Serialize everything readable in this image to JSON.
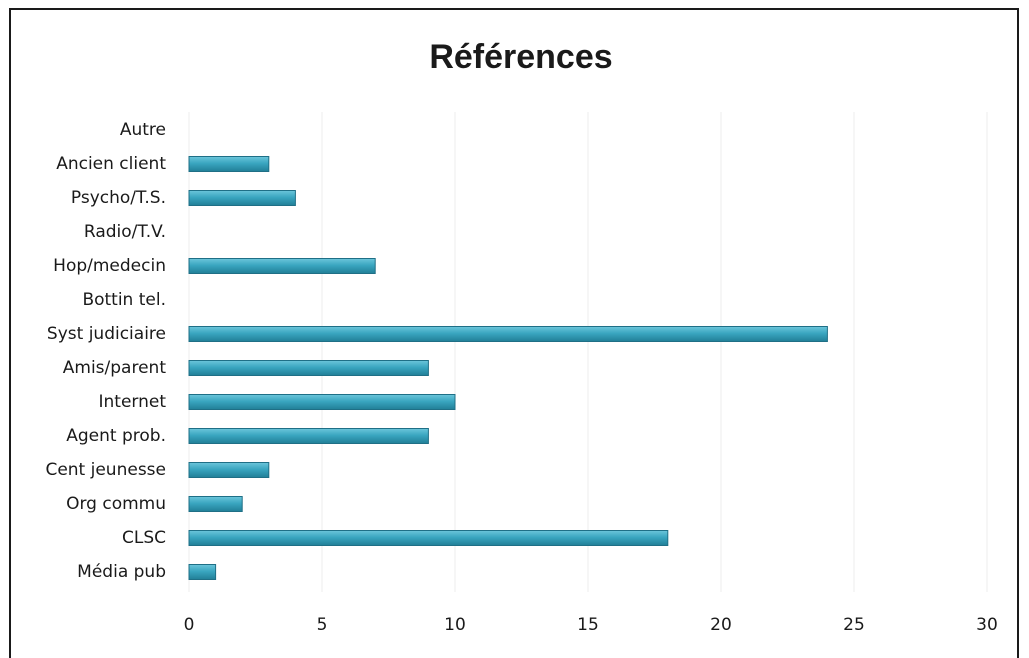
{
  "chart_data": {
    "type": "bar",
    "orientation": "horizontal",
    "title": "Références",
    "categories": [
      "Autre",
      "Ancien client",
      "Psycho/T.S.",
      "Radio/T.V.",
      "Hop/medecin",
      "Bottin tel.",
      "Syst judiciaire",
      "Amis/parent",
      "Internet",
      "Agent prob.",
      "Cent jeunesse",
      "Org commu",
      "CLSC",
      "Média pub"
    ],
    "values": [
      0,
      3,
      4,
      0,
      7,
      0,
      24,
      9,
      10,
      9,
      3,
      2,
      18,
      1
    ],
    "xlim": [
      0,
      30
    ],
    "xticks": [
      "0",
      "5",
      "10",
      "15",
      "20",
      "25",
      "30"
    ],
    "grid": true,
    "legend": "none",
    "bar_color": "#3aa6c0",
    "bar_edge_color": "#1f6f86"
  }
}
